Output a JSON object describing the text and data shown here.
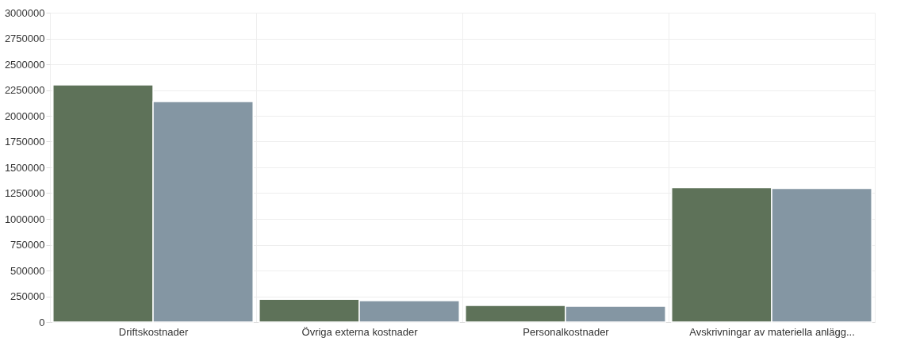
{
  "chart_data": {
    "type": "bar",
    "categories": [
      "Driftskostnader",
      "Övriga externa kostnader",
      "Personalkostnader",
      "Avskrivningar av materiella anlägg..."
    ],
    "series": [
      {
        "color": "#5e7259",
        "values": [
          2300000,
          222000,
          161000,
          1304000
        ]
      },
      {
        "color": "#8496a3",
        "values": [
          2138000,
          207000,
          153000,
          1296000
        ]
      }
    ],
    "ylim": [
      0,
      3000000
    ],
    "yticks": [
      0,
      250000,
      500000,
      750000,
      1000000,
      1250000,
      1500000,
      1750000,
      2000000,
      2250000,
      2500000,
      2750000,
      3000000
    ],
    "grid": true,
    "legend": false
  }
}
